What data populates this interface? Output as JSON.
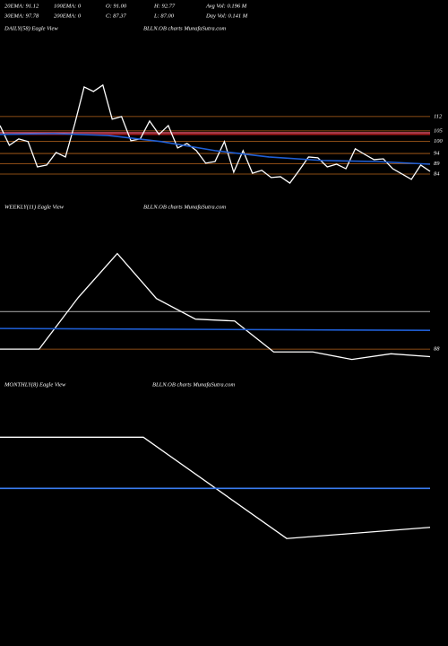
{
  "header": {
    "stats": [
      [
        "20EMA: 91.12",
        "100EMA: 0",
        "O: 91.00",
        "H: 92.77",
        "Avg Vol: 0.196  M"
      ],
      [
        "30EMA: 97.78",
        "200EMA: 0",
        "C: 87.37",
        "L: 87.00",
        "Day Vol: 0.141  M"
      ]
    ]
  },
  "chart_data": [
    {
      "type": "line",
      "title": "DAILY(58) Eagle   View",
      "source": "BLLN.OB charts MunafaSutra.com",
      "ylim": [
        77,
        160
      ],
      "yticks": [
        112,
        105,
        100,
        94,
        89,
        84
      ],
      "tick_color": "#b8651d",
      "levels": [
        {
          "value": 104.1,
          "color": "#ff5c7a"
        },
        {
          "value": 103.3,
          "color": "#d62020"
        }
      ],
      "series": [
        {
          "color": "#ffffff",
          "values": [
            107.6,
            98.0,
            101.1,
            99.8,
            87.5,
            88.4,
            94.5,
            92.3,
            108.5,
            126.4,
            124.2,
            127.3,
            110.7,
            112.0,
            100.2,
            101.1,
            109.8,
            103.3,
            107.6,
            96.7,
            98.9,
            95.4,
            89.3,
            90.1,
            99.8,
            84.9,
            95.4,
            84.4,
            85.8,
            82.3,
            82.7,
            79.6,
            85.8,
            92.3,
            91.9,
            87.5,
            88.8,
            86.6,
            96.3,
            93.6,
            91.0,
            91.4,
            86.6,
            84.0,
            81.4,
            88.4,
            85.3
          ]
        },
        {
          "color": "#1f5fd6",
          "values": [
            103.3,
            103.7,
            102.8,
            99.8,
            95.4,
            92.3,
            90.6,
            90.1,
            88.8
          ]
        }
      ]
    },
    {
      "type": "line",
      "title": "WEEKLY(11) Eagle   View",
      "source": "BLLN.OB charts MunafaSutra.com",
      "ylim": [
        78,
        168
      ],
      "yticks": [
        88
      ],
      "tick_color": "#b8651d",
      "levels": [
        {
          "value": 108,
          "color": "#9a9a9a"
        }
      ],
      "series": [
        {
          "color": "#ffffff",
          "values": [
            88,
            88,
            115.5,
            139,
            115,
            104,
            103,
            86.5,
            86.5,
            82.5,
            85.5,
            84
          ]
        },
        {
          "color": "#1f5fd6",
          "values": [
            99,
            98
          ]
        }
      ]
    },
    {
      "type": "line",
      "title": "MONTHLY(8) Eagle   View",
      "source": "BLLN.OB charts MunafaSutra.com",
      "ylim": [
        60,
        200
      ],
      "yticks": [],
      "tick_color": "#b8651d",
      "levels": [],
      "series": [
        {
          "color": "#ffffff",
          "values": [
            167.5,
            167.5,
            113,
            119
          ]
        },
        {
          "color": "#3a7bf0",
          "values": [
            140,
            140
          ]
        }
      ]
    }
  ]
}
